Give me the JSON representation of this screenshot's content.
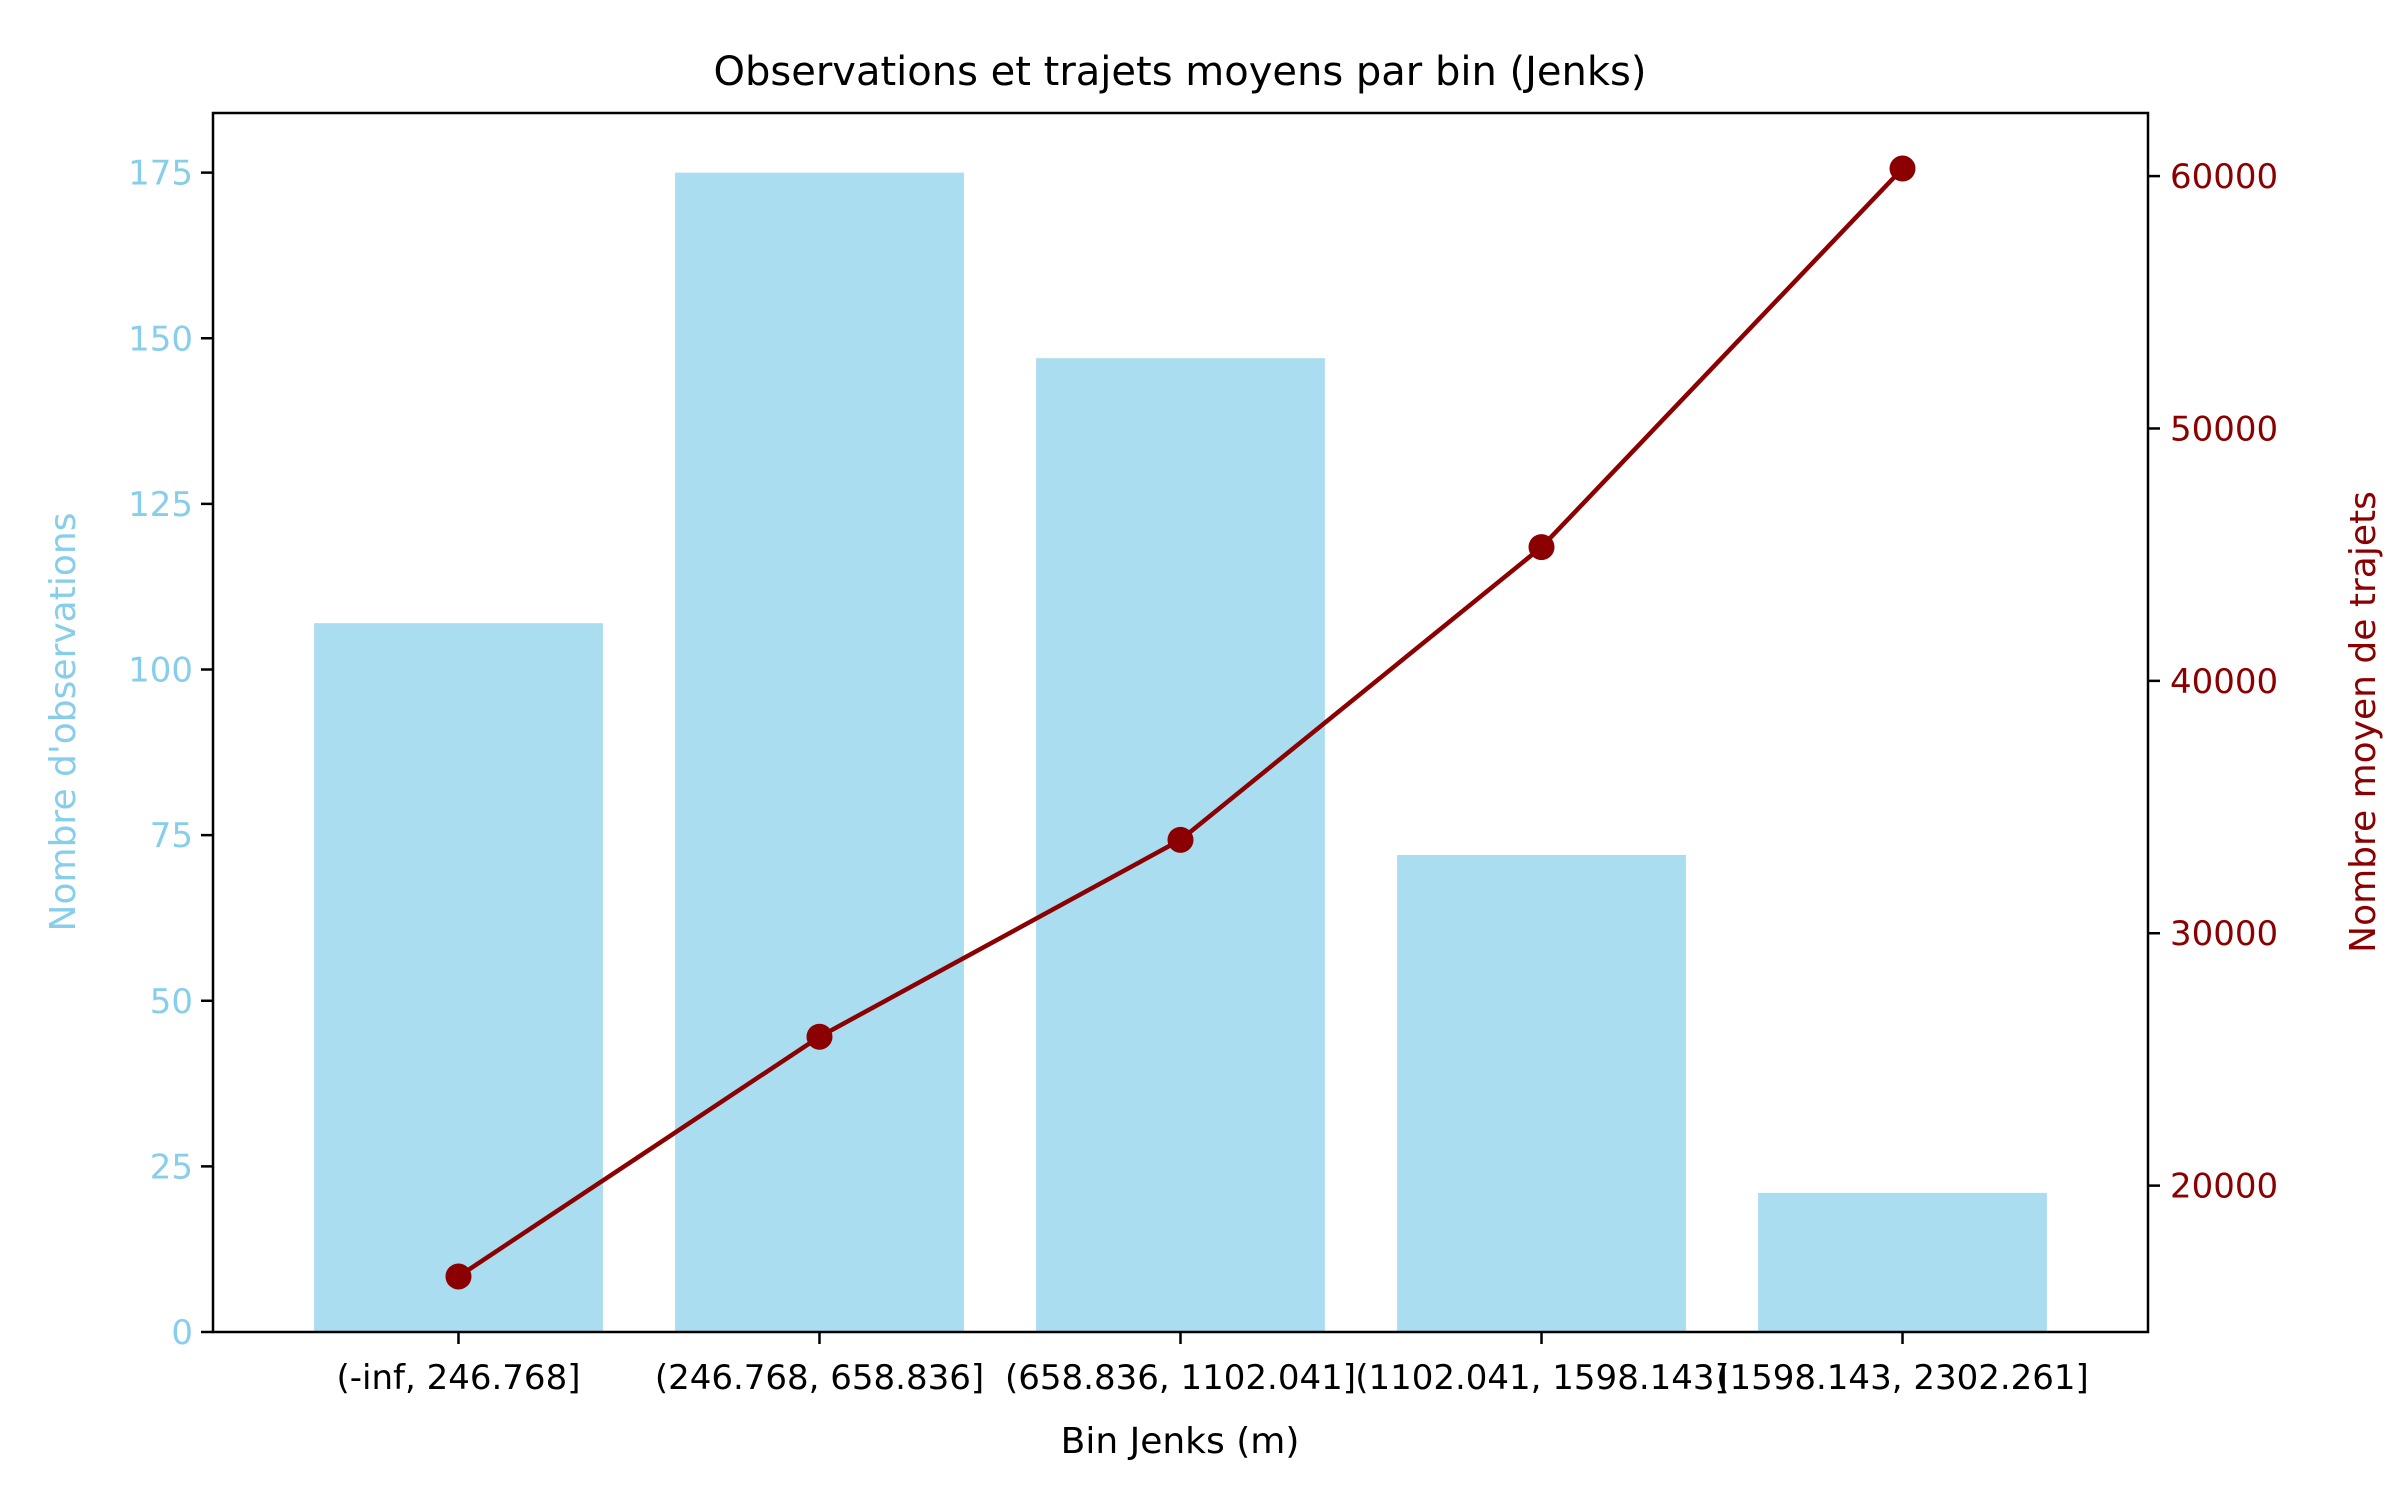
{
  "chart_data": {
    "type": "bar+line",
    "title": "Observations et trajets moyens par bin (Jenks)",
    "xlabel": "Bin Jenks (m)",
    "ylabel_left": "Nombre d'observations",
    "ylabel_right": "Nombre moyen de trajets",
    "categories": [
      "(-inf, 246.768]",
      "(246.768, 658.836]",
      "(658.836, 1102.041]",
      "(1102.041, 1598.143]",
      "(1598.143, 2302.261]"
    ],
    "series": [
      {
        "axis": "left",
        "kind": "bar",
        "color": "#87ceeb",
        "values": [
          107,
          175,
          147,
          72,
          21
        ]
      },
      {
        "axis": "right",
        "kind": "line",
        "color": "#8b0000",
        "marker": "circle",
        "values": [
          16400,
          25900,
          33700,
          45300,
          60300
        ]
      }
    ],
    "ylim_left": [
      0,
      184
    ],
    "ylim_right": [
      14200,
      62500
    ],
    "yticks_left": [
      0,
      25,
      50,
      75,
      100,
      125,
      150,
      175
    ],
    "yticks_right": [
      20000,
      30000,
      40000,
      50000,
      60000
    ],
    "grid": false,
    "colors": {
      "left_axis": "#87ceeb",
      "right_axis": "#8b0000",
      "bar_fill": "#87ceeb",
      "line": "#8b0000"
    }
  }
}
